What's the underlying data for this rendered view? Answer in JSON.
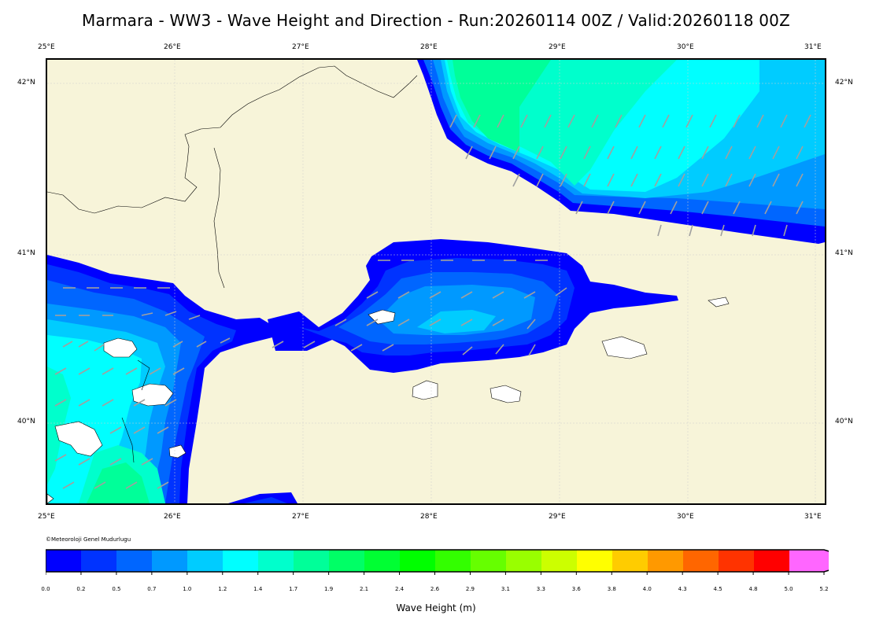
{
  "title": "Marmara - WW3 - Wave Height and Direction - Run:20260114 00Z / Valid:20260118 00Z",
  "lon_ticks": [
    "25°E",
    "26°E",
    "27°E",
    "28°E",
    "29°E",
    "30°E",
    "31°E"
  ],
  "lat_ticks": [
    "42°N",
    "41°N",
    "40°N"
  ],
  "credit": "©Meteoroloji Genel Mudurlugu",
  "colorbar": {
    "title": "Wave Height (m)",
    "labels": [
      "0.0",
      "0.2",
      "0.5",
      "0.7",
      "1.0",
      "1.2",
      "1.4",
      "1.7",
      "1.9",
      "2.1",
      "2.4",
      "2.6",
      "2.9",
      "3.1",
      "3.3",
      "3.6",
      "3.8",
      "4.0",
      "4.3",
      "4.5",
      "4.8",
      "5.0",
      "5.2"
    ],
    "colors": [
      "#0000ff",
      "#0033ff",
      "#0066ff",
      "#0099ff",
      "#00ccff",
      "#00ffff",
      "#00ffcc",
      "#00ff99",
      "#00ff66",
      "#00ff33",
      "#00ff00",
      "#33ff00",
      "#66ff00",
      "#99ff00",
      "#ccff00",
      "#ffff00",
      "#ffcc00",
      "#ff9900",
      "#ff6600",
      "#ff3300",
      "#ff0000",
      "#ff66ff"
    ]
  },
  "colors": {
    "land": "#f7f4d9",
    "grid": "#cfcfcf",
    "arrow": "#a0a0a0"
  }
}
